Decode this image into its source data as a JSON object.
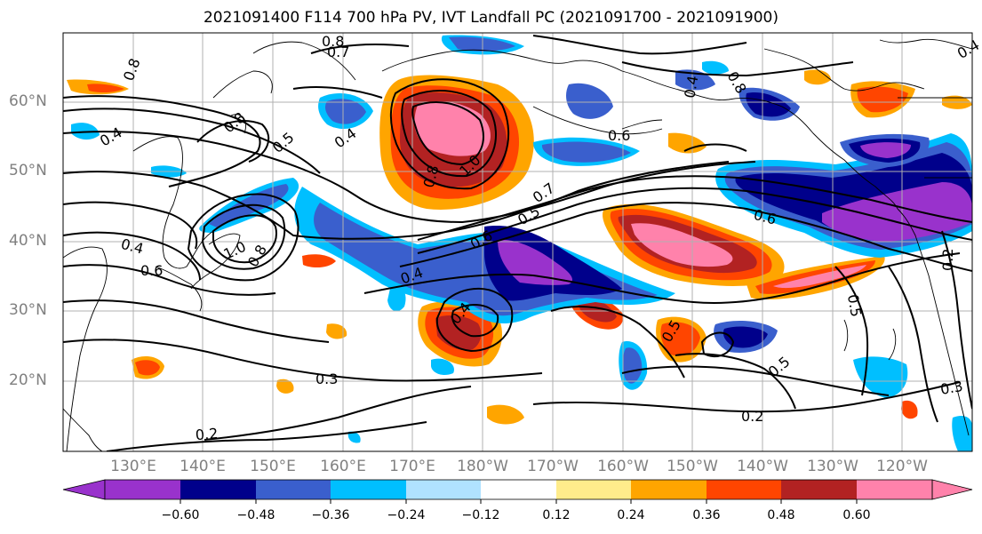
{
  "title": "2021091400 F114 700 hPa PV, IVT Landfall PC (2021091700 - 2021091900)",
  "lat_labels": [
    "60°N",
    "50°N",
    "40°N",
    "30°N",
    "20°N"
  ],
  "lon_labels": [
    "130°E",
    "140°E",
    "150°E",
    "160°E",
    "170°E",
    "180°W",
    "170°W",
    "160°W",
    "150°W",
    "140°W",
    "130°W",
    "120°W"
  ],
  "colorbar": {
    "colors": [
      "#9932cc",
      "#00008b",
      "#3a5fcd",
      "#00bfff",
      "#b0e2ff",
      "#ffffff",
      "#ffec8b",
      "#ffa500",
      "#ff4500",
      "#b22222",
      "#ff82ab"
    ],
    "tick_labels": [
      "−0.60",
      "−0.48",
      "−0.36",
      "−0.24",
      "−0.12",
      "0.12",
      "0.24",
      "0.36",
      "0.48",
      "0.60"
    ]
  },
  "contour_labels": [
    "0.8",
    "0.7",
    "0.8",
    "0.4",
    "0.4",
    "0.5",
    "0.8",
    "0.4",
    "1.0",
    "0.8",
    "0.6",
    "0.7",
    "0.5",
    "0.6",
    "0.4",
    "0.6",
    "0.4",
    "0.8",
    "1.0",
    "0.6",
    "0.4",
    "0.5",
    "0.5",
    "0.3",
    "0.2",
    "0.2",
    "0.3",
    "0.2",
    "0.4",
    "0.8",
    "0.5"
  ]
}
